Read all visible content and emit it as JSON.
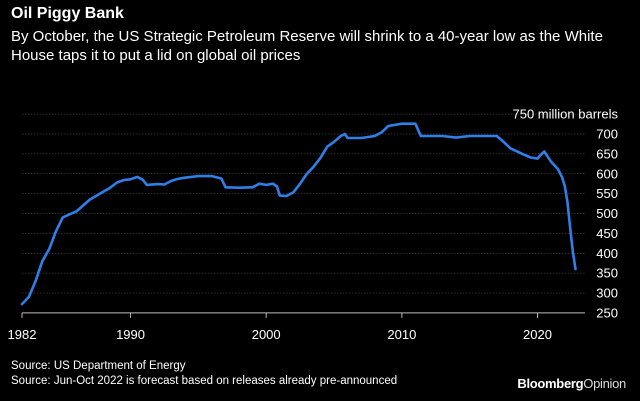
{
  "header": {
    "title": "Oil Piggy Bank",
    "subtitle": "By October, the US Strategic Petroleum Reserve will shrink to a 40-year low as the White House taps it to put a lid on global oil prices"
  },
  "footer": {
    "source1": "Source: US Department of Energy",
    "source2": "Source: Jun-Oct 2022 is forecast based on releases already pre-announced",
    "brand_part1": "Bloomberg",
    "brand_part2": "Opinion"
  },
  "colors": {
    "background": "#000000",
    "line": "#2f7fe8",
    "grid": "#5a5a5a",
    "text": "#ffffff"
  },
  "chart_data": {
    "type": "line",
    "ylabel": "750 million barrels",
    "ylim": [
      250,
      750
    ],
    "yticks": [
      250,
      300,
      350,
      400,
      450,
      500,
      550,
      600,
      650,
      700,
      750
    ],
    "ytick_labels": [
      "250",
      "300",
      "350",
      "400",
      "450",
      "500",
      "550",
      "600",
      "650",
      "700",
      "750 million barrels"
    ],
    "xlim": [
      1982,
      2023.5
    ],
    "xticks": [
      1982,
      1990,
      2000,
      2010,
      2020
    ],
    "xtick_labels": [
      "1982",
      "1990",
      "2000",
      "2010",
      "2020"
    ],
    "grid": "horizontal",
    "series": [
      {
        "values": [
          [
            1982.0,
            272
          ],
          [
            1982.5,
            290
          ],
          [
            1983.0,
            330
          ],
          [
            1983.5,
            380
          ],
          [
            1984.0,
            410
          ],
          [
            1984.5,
            455
          ],
          [
            1985.0,
            490
          ],
          [
            1985.5,
            498
          ],
          [
            1986.0,
            505
          ],
          [
            1986.5,
            520
          ],
          [
            1987.0,
            535
          ],
          [
            1987.5,
            545
          ],
          [
            1988.0,
            555
          ],
          [
            1988.5,
            565
          ],
          [
            1989.0,
            578
          ],
          [
            1989.5,
            584
          ],
          [
            1990.0,
            586
          ],
          [
            1990.5,
            592
          ],
          [
            1990.9,
            585
          ],
          [
            1991.2,
            572
          ],
          [
            1992.0,
            574
          ],
          [
            1992.5,
            573
          ],
          [
            1993.0,
            582
          ],
          [
            1993.5,
            587
          ],
          [
            1994.0,
            590
          ],
          [
            1995.0,
            594
          ],
          [
            1996.0,
            594
          ],
          [
            1996.7,
            588
          ],
          [
            1997.0,
            566
          ],
          [
            1998.0,
            565
          ],
          [
            1999.0,
            566
          ],
          [
            1999.5,
            575
          ],
          [
            2000.0,
            572
          ],
          [
            2000.5,
            575
          ],
          [
            2000.8,
            568
          ],
          [
            2001.0,
            545
          ],
          [
            2001.5,
            544
          ],
          [
            2002.0,
            553
          ],
          [
            2002.5,
            575
          ],
          [
            2003.0,
            600
          ],
          [
            2003.5,
            618
          ],
          [
            2004.0,
            640
          ],
          [
            2004.5,
            668
          ],
          [
            2005.0,
            680
          ],
          [
            2005.5,
            695
          ],
          [
            2005.8,
            700
          ],
          [
            2006.0,
            690
          ],
          [
            2007.0,
            690
          ],
          [
            2008.0,
            695
          ],
          [
            2008.5,
            704
          ],
          [
            2009.0,
            720
          ],
          [
            2010.0,
            726
          ],
          [
            2011.0,
            726
          ],
          [
            2011.4,
            695
          ],
          [
            2012.0,
            695
          ],
          [
            2013.0,
            695
          ],
          [
            2014.0,
            691
          ],
          [
            2015.0,
            695
          ],
          [
            2016.0,
            695
          ],
          [
            2017.0,
            695
          ],
          [
            2017.5,
            680
          ],
          [
            2018.0,
            664
          ],
          [
            2019.0,
            648
          ],
          [
            2019.5,
            641
          ],
          [
            2020.0,
            638
          ],
          [
            2020.3,
            650
          ],
          [
            2020.5,
            656
          ],
          [
            2021.0,
            630
          ],
          [
            2021.5,
            612
          ],
          [
            2021.8,
            592
          ],
          [
            2022.0,
            570
          ],
          [
            2022.2,
            530
          ],
          [
            2022.4,
            465
          ],
          [
            2022.6,
            405
          ],
          [
            2022.8,
            360
          ]
        ]
      }
    ]
  }
}
